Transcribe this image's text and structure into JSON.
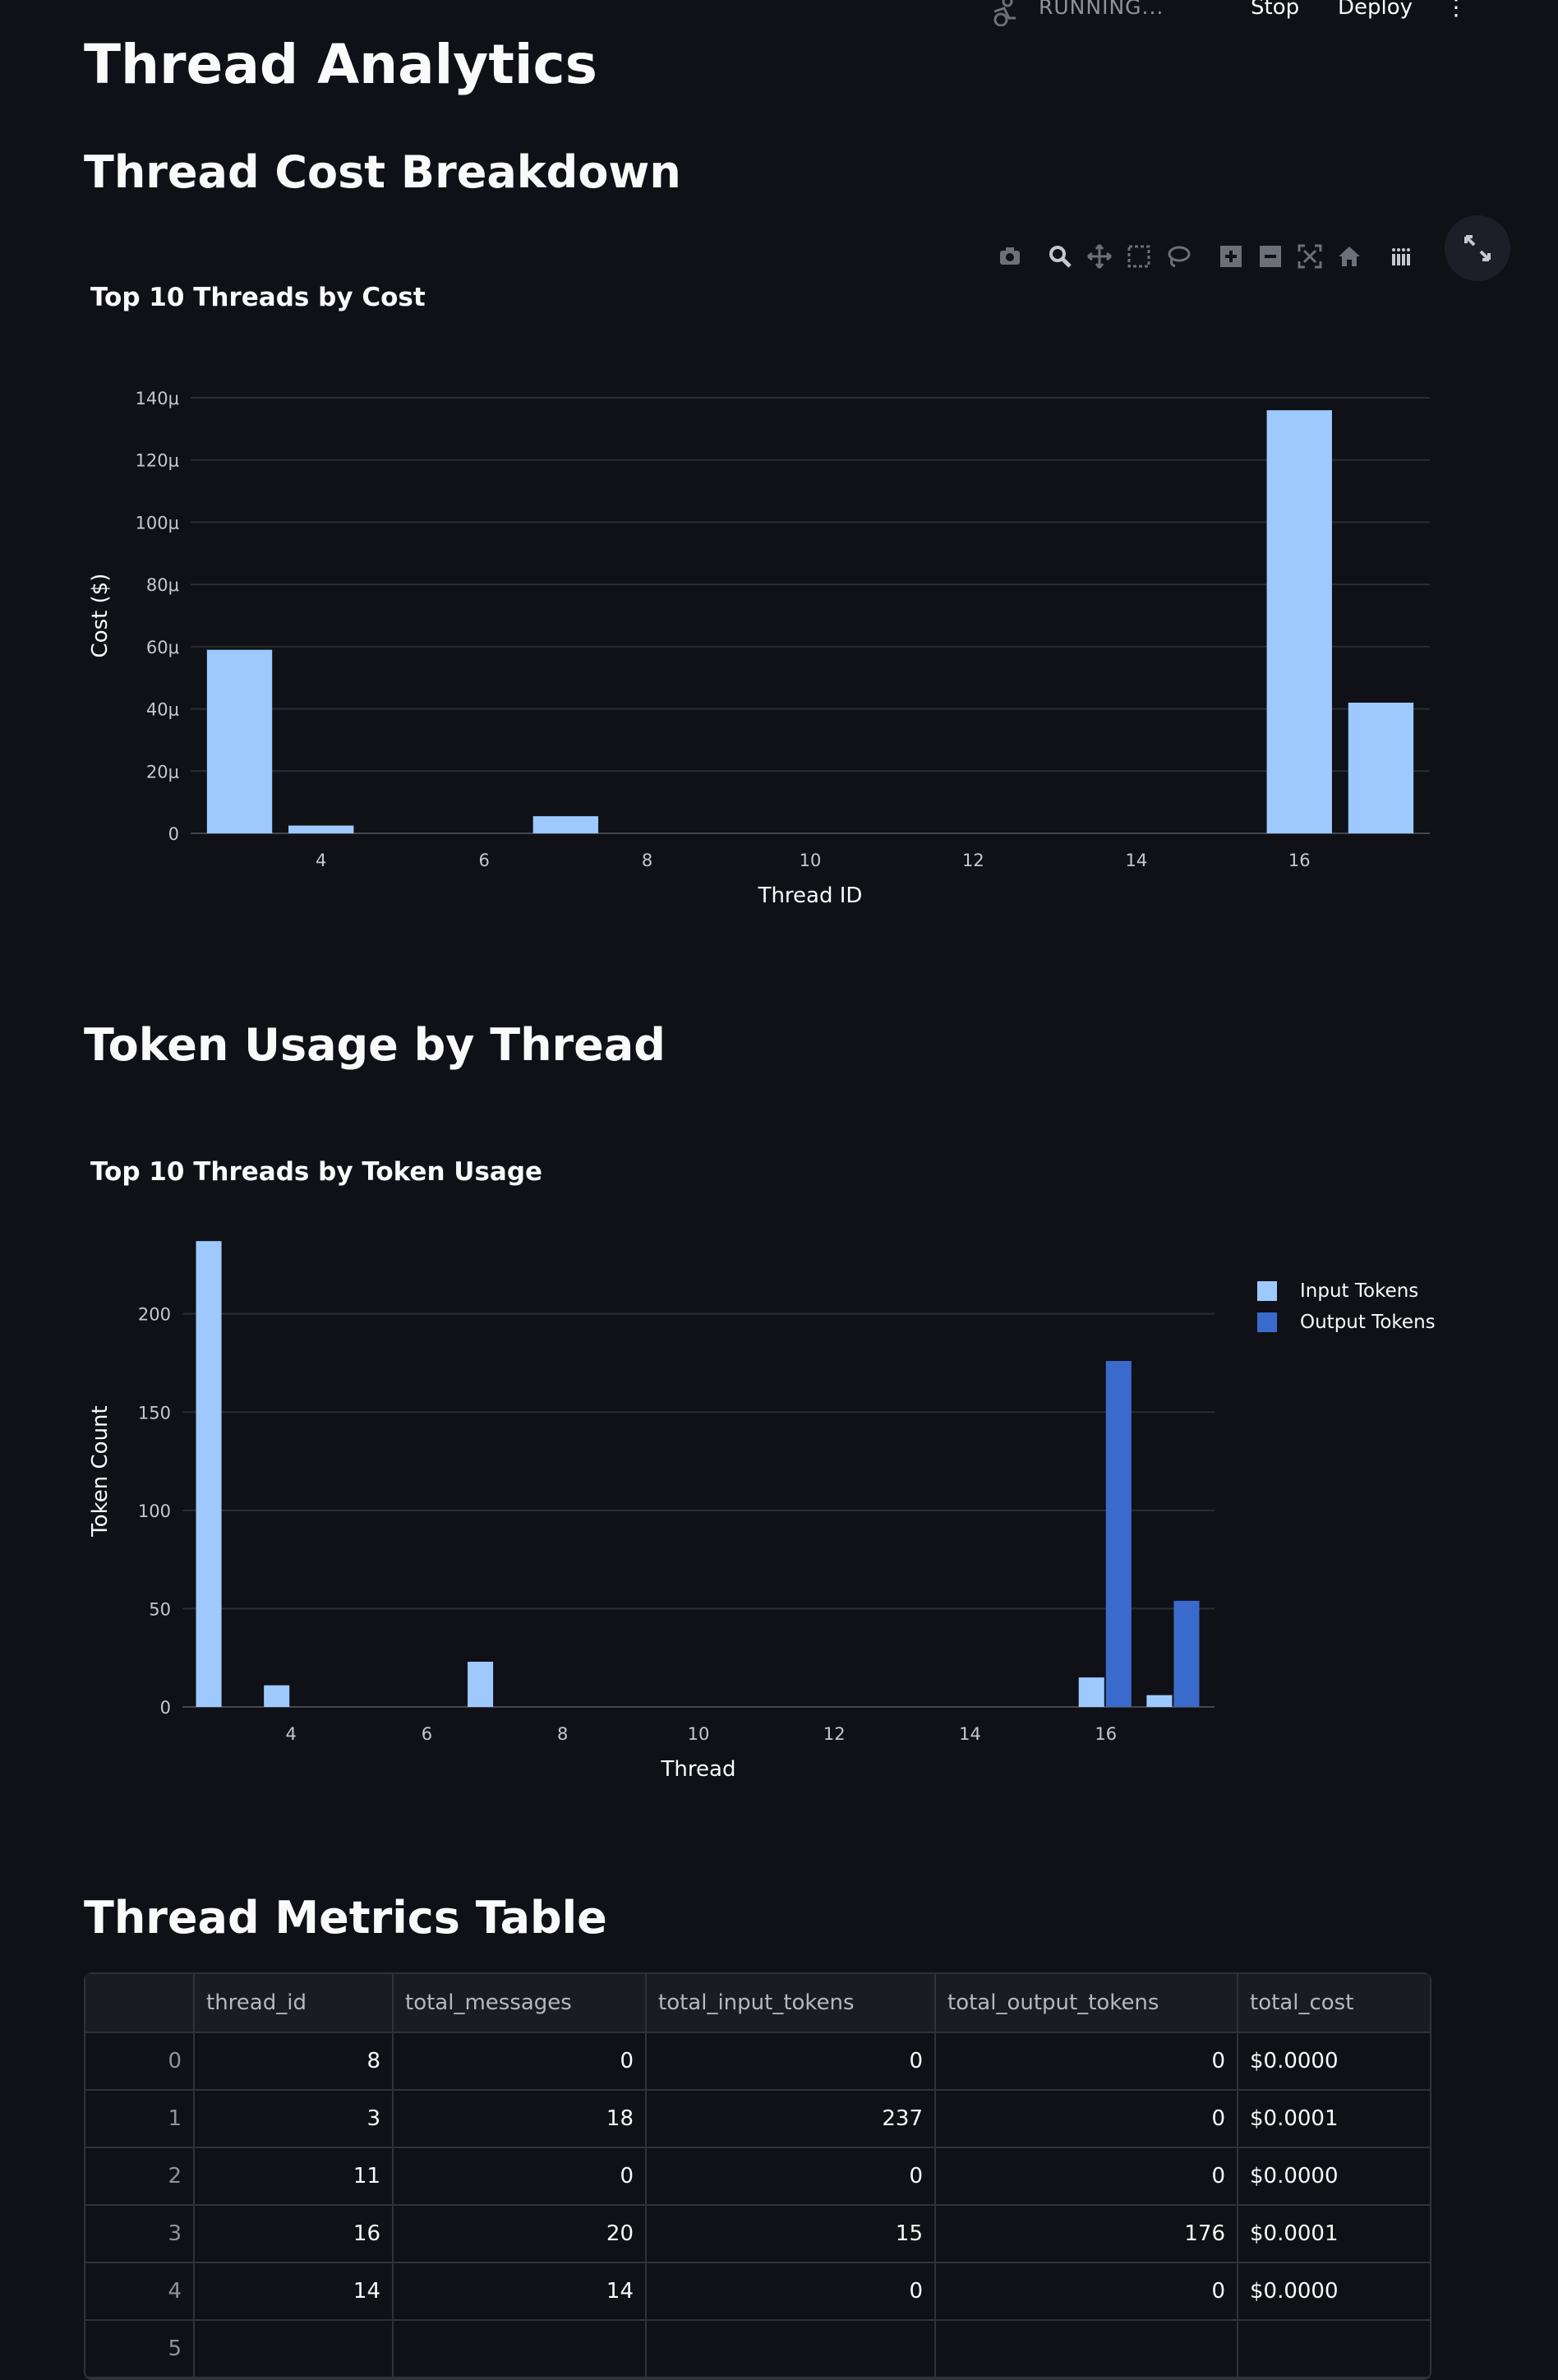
{
  "header": {
    "status": "RUNNING...",
    "stop_label": "Stop",
    "deploy_label": "Deploy"
  },
  "page": {
    "title": "Thread Analytics"
  },
  "sections": {
    "cost": "Thread Cost Breakdown",
    "tokens": "Token Usage by Thread",
    "table": "Thread Metrics Table"
  },
  "modebar_icons": [
    "camera-icon",
    "zoom-icon",
    "pan-icon",
    "box-select-icon",
    "lasso-select-icon",
    "zoom-in-icon",
    "zoom-out-icon",
    "autoscale-icon",
    "reset-axes-icon",
    "plotly-logo-icon"
  ],
  "colors": {
    "background": "#0f1116",
    "input": "#9ec9ff",
    "output": "#3a6bcc",
    "grid": "#2b2d35"
  },
  "chart_data": [
    {
      "type": "bar",
      "title": "Top 10 Threads by Cost",
      "xlabel": "Thread ID",
      "ylabel": "Cost ($)",
      "xlim": [
        2.4,
        17.6
      ],
      "ylim": [
        0,
        0.00014
      ],
      "x_ticks": [
        4,
        6,
        8,
        10,
        12,
        14,
        16
      ],
      "y_ticks": [
        0,
        2e-05,
        4e-05,
        6e-05,
        8e-05,
        0.0001,
        0.00012,
        0.00014
      ],
      "y_tick_labels": [
        "0",
        "20μ",
        "40μ",
        "60μ",
        "80μ",
        "100μ",
        "120μ",
        "140μ"
      ],
      "x": [
        3,
        4,
        7,
        16,
        17
      ],
      "values": [
        5.9e-05,
        2.5e-06,
        5.5e-06,
        0.000136,
        4.2e-05
      ],
      "color": "#9ec9ff"
    },
    {
      "type": "bar",
      "title": "Top 10 Threads by Token Usage",
      "xlabel": "Thread",
      "ylabel": "Token Count",
      "xlim": [
        2.4,
        17.6
      ],
      "ylim": [
        0,
        240
      ],
      "x_ticks": [
        4,
        6,
        8,
        10,
        12,
        14,
        16
      ],
      "y_ticks": [
        0,
        50,
        100,
        150,
        200
      ],
      "x": [
        3,
        4,
        7,
        16,
        17
      ],
      "series": [
        {
          "name": "Input Tokens",
          "values": [
            237,
            11,
            23,
            15,
            6
          ],
          "color": "#9ec9ff"
        },
        {
          "name": "Output Tokens",
          "values": [
            0,
            0,
            0,
            176,
            54
          ],
          "color": "#3a6bcc"
        }
      ]
    }
  ],
  "table": {
    "columns": [
      "",
      "thread_id",
      "total_messages",
      "total_input_tokens",
      "total_output_tokens",
      "total_cost"
    ],
    "rows": [
      [
        "0",
        "8",
        "0",
        "0",
        "0",
        "$0.0000"
      ],
      [
        "1",
        "3",
        "18",
        "237",
        "0",
        "$0.0001"
      ],
      [
        "2",
        "11",
        "0",
        "0",
        "0",
        "$0.0000"
      ],
      [
        "3",
        "16",
        "20",
        "15",
        "176",
        "$0.0001"
      ],
      [
        "4",
        "14",
        "14",
        "0",
        "0",
        "$0.0000"
      ],
      [
        "5",
        "",
        "",
        "",
        "",
        ""
      ]
    ]
  }
}
